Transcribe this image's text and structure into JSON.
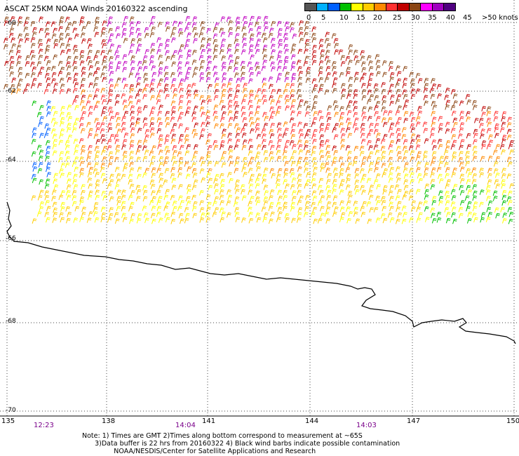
{
  "title": "ASCAT 25KM NOAA Winds 20160322 ascending",
  "scale": {
    "colors": [
      "#555555",
      "#00b0ff",
      "#0060ff",
      "#00c000",
      "#ffff00",
      "#ffcc00",
      "#ff8800",
      "#ff3030",
      "#c00000",
      "#8b4513",
      "#ff00ff",
      "#a000c0",
      "#500080"
    ],
    "labels": [
      "0",
      "5",
      "10",
      "15",
      "20",
      "25",
      "30",
      "35",
      "40",
      "45",
      ">50 knots"
    ]
  },
  "latitudes": [
    "-60",
    "-62",
    "-64",
    "-66",
    "-68",
    "-70"
  ],
  "longitudes": [
    "135",
    "138",
    "141",
    "144",
    "147",
    "150"
  ],
  "times": [
    "12:23",
    "14:04",
    "14:03"
  ],
  "notes": [
    "Note: 1) Times are GMT 2)Times along bottom correspond to measurement at ~65S",
    "      3)Data buffer is 22 hrs from 20160322 4) Black wind barbs indicate possible contamination",
    "               NOAA/NESDIS/Center for Satellite Applications and Research"
  ]
}
